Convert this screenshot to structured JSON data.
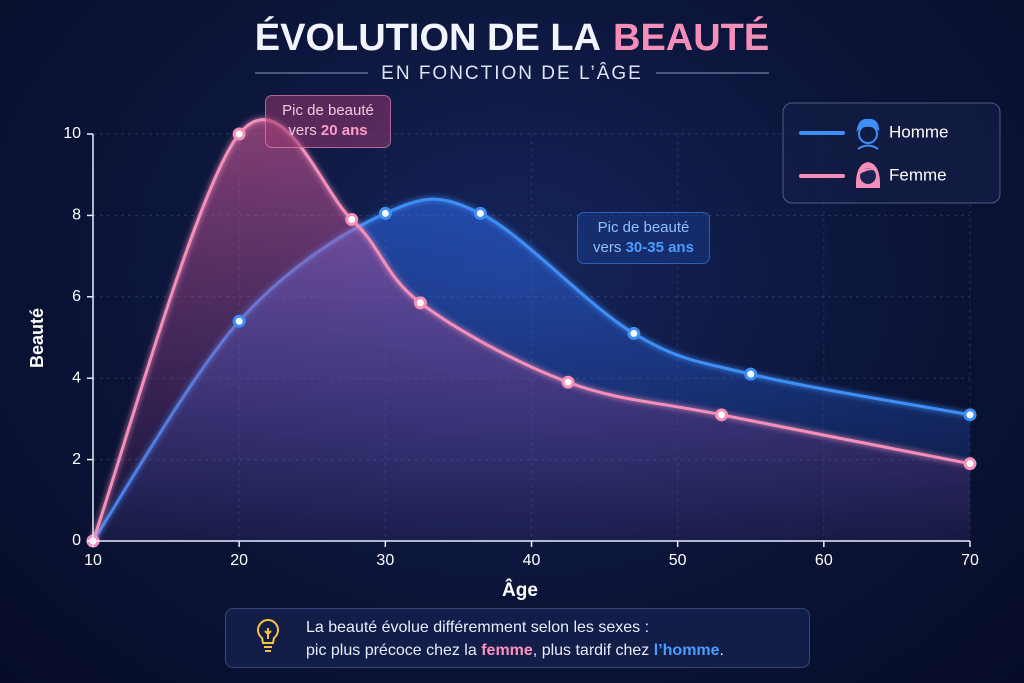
{
  "chart_data": {
    "type": "line",
    "title": "ÉVOLUTION DE LA",
    "title_highlight": "BEAUTÉ",
    "subtitle": "EN FONCTION DE L’ÂGE",
    "x_label": "Âge",
    "y_label": "Beauté",
    "xlim": [
      10,
      70
    ],
    "xticks": [
      10,
      20,
      30,
      40,
      50,
      60,
      70
    ],
    "ylim": [
      0,
      10
    ],
    "yticks": [
      0,
      2,
      4,
      6,
      8,
      10
    ],
    "grid": true,
    "legend": "top-right",
    "series": [
      {
        "name": "Homme",
        "color": "#3d8ef7",
        "x": [
          10,
          20,
          30,
          36.5,
          47,
          55,
          70
        ],
        "values": [
          0,
          5.4,
          8.05,
          8.05,
          5.1,
          4.1,
          3.1
        ]
      },
      {
        "name": "Femme",
        "color": "#f58fba",
        "x": [
          10,
          20,
          27.7,
          32.4,
          42.5,
          53,
          70
        ],
        "values": [
          0,
          10,
          7.9,
          5.85,
          3.9,
          3.1,
          1.9
        ]
      }
    ],
    "annotations": [
      {
        "line1": "Pic de beauté",
        "line2": "vers",
        "highlight": "20 ans"
      },
      {
        "line1": "Pic de beauté",
        "line2": "vers",
        "highlight": "30-35 ans"
      }
    ],
    "note": {
      "line1": "La beauté évolue différemment selon les sexes :",
      "part1": "pic plus précoce chez la",
      "femme": "femme",
      "part2": ", plus tardif chez",
      "homme": "l’homme",
      "end": "."
    }
  }
}
